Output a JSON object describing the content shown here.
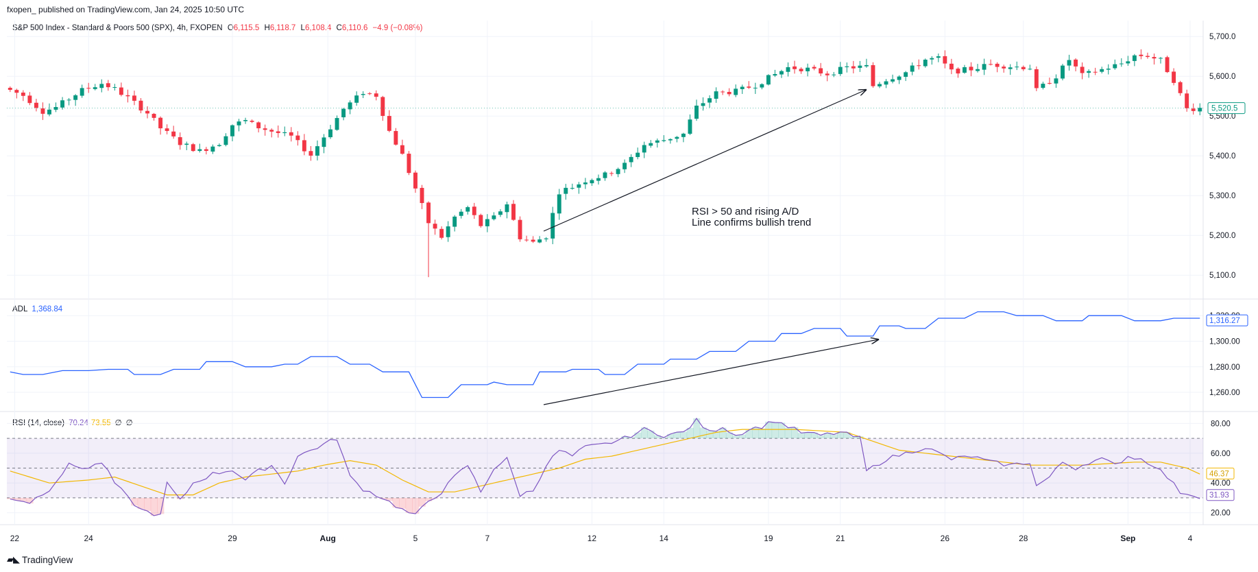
{
  "header": {
    "published": "fxopen_ published on TradingView.com, Jan 24, 2025 10:50 UTC",
    "symbol": "S&P 500 Index - Standard & Poors 500 (SPX), 4h, FXOPEN",
    "ohlc": {
      "o_label": "O",
      "o": "6,115.5",
      "h_label": "H",
      "h": "6,118.7",
      "l_label": "L",
      "l": "6,108.4",
      "c_label": "C",
      "c": "6,110.6",
      "change": "−4.9 (−0.08%)"
    }
  },
  "annotation": {
    "line1": "RSI > 50 and rising A/D",
    "line2": "Line confirms bullish trend"
  },
  "brand": {
    "name": "TradingView",
    "logo": "tradingview-logo-icon"
  },
  "colors": {
    "up": "#089981",
    "down": "#f23645",
    "adl": "#2962ff",
    "rsi": "#7e57c2",
    "rsi_ma": "#f2b700",
    "grid": "#f0f3fa",
    "axis_text": "#131722"
  },
  "chart_data": [
    {
      "type": "candlestick",
      "title": "S&P 500 Index - Standard & Poors 500 (SPX), 4h, FXOPEN",
      "ylim": [
        5040,
        5740
      ],
      "y_ticks": [
        "5,700.0",
        "5,600.0",
        "5,500.0",
        "5,400.0",
        "5,300.0",
        "5,200.0",
        "5,100.0"
      ],
      "y_tick_values": [
        5700,
        5600,
        5500,
        5400,
        5300,
        5200,
        5100
      ],
      "last_price_label": "5,520.5",
      "x_labels": [
        "22",
        "24",
        "29",
        "Aug",
        "5",
        "7",
        "12",
        "14",
        "19",
        "21",
        "26",
        "28",
        "Sep",
        "4"
      ],
      "close_anchors": [
        [
          0,
          5565
        ],
        [
          2,
          5552
        ],
        [
          5,
          5512
        ],
        [
          7,
          5522
        ],
        [
          11,
          5565
        ],
        [
          14,
          5582
        ],
        [
          16,
          5568
        ],
        [
          18,
          5546
        ],
        [
          21,
          5508
        ],
        [
          23,
          5470
        ],
        [
          26,
          5432
        ],
        [
          29,
          5412
        ],
        [
          32,
          5432
        ],
        [
          34,
          5478
        ],
        [
          36,
          5488
        ],
        [
          38,
          5472
        ],
        [
          40,
          5462
        ],
        [
          43,
          5448
        ],
        [
          46,
          5402
        ],
        [
          48,
          5448
        ],
        [
          51,
          5518
        ],
        [
          54,
          5560
        ],
        [
          56,
          5552
        ],
        [
          58,
          5462
        ],
        [
          60,
          5402
        ],
        [
          62,
          5318
        ],
        [
          64,
          5232
        ],
        [
          66,
          5196
        ],
        [
          68,
          5246
        ],
        [
          70,
          5270
        ],
        [
          72,
          5225
        ],
        [
          74,
          5245
        ],
        [
          76,
          5280
        ],
        [
          78,
          5195
        ],
        [
          80,
          5182
        ],
        [
          82,
          5198
        ],
        [
          84,
          5310
        ],
        [
          86,
          5322
        ],
        [
          88,
          5338
        ],
        [
          91,
          5352
        ],
        [
          94,
          5378
        ],
        [
          97,
          5428
        ],
        [
          100,
          5440
        ],
        [
          103,
          5455
        ],
        [
          105,
          5522
        ],
        [
          108,
          5558
        ],
        [
          111,
          5562
        ],
        [
          114,
          5578
        ],
        [
          116,
          5596
        ],
        [
          119,
          5622
        ],
        [
          122,
          5618
        ],
        [
          125,
          5606
        ],
        [
          128,
          5622
        ],
        [
          131,
          5624
        ],
        [
          132,
          5576
        ],
        [
          134,
          5592
        ],
        [
          137,
          5610
        ],
        [
          140,
          5642
        ],
        [
          142,
          5645
        ],
        [
          144,
          5612
        ],
        [
          147,
          5618
        ],
        [
          150,
          5630
        ],
        [
          153,
          5625
        ],
        [
          156,
          5622
        ],
        [
          157,
          5564
        ],
        [
          160,
          5600
        ],
        [
          162,
          5642
        ],
        [
          164,
          5602
        ],
        [
          167,
          5617
        ],
        [
          170,
          5632
        ],
        [
          172,
          5652
        ],
        [
          174,
          5652
        ],
        [
          176,
          5640
        ],
        [
          178,
          5590
        ],
        [
          180,
          5518
        ],
        [
          182,
          5520
        ]
      ],
      "candle_count": 183
    },
    {
      "type": "line",
      "title": "ADL",
      "value_label": "1,368.84",
      "ylim": [
        1245,
        1333
      ],
      "y_ticks": [
        "1,320.00",
        "1,300.00",
        "1,280.00",
        "1,260.00"
      ],
      "y_tick_values": [
        1320,
        1300,
        1280,
        1260
      ],
      "last_value_label": "1,316.27",
      "steps": [
        [
          0,
          1276
        ],
        [
          2,
          1274
        ],
        [
          5,
          1274
        ],
        [
          8,
          1277
        ],
        [
          12,
          1277
        ],
        [
          15,
          1278
        ],
        [
          18,
          1278
        ],
        [
          19,
          1274
        ],
        [
          23,
          1274
        ],
        [
          25,
          1278
        ],
        [
          29,
          1278
        ],
        [
          30,
          1284
        ],
        [
          34,
          1284
        ],
        [
          36,
          1280
        ],
        [
          40,
          1280
        ],
        [
          42,
          1282
        ],
        [
          44,
          1282
        ],
        [
          46,
          1288
        ],
        [
          50,
          1288
        ],
        [
          52,
          1282
        ],
        [
          55,
          1282
        ],
        [
          57,
          1276
        ],
        [
          61,
          1276
        ],
        [
          63,
          1256
        ],
        [
          67,
          1256
        ],
        [
          69,
          1266
        ],
        [
          73,
          1266
        ],
        [
          74,
          1268
        ],
        [
          76,
          1266
        ],
        [
          80,
          1266
        ],
        [
          81,
          1276
        ],
        [
          85,
          1276
        ],
        [
          86,
          1278
        ],
        [
          90,
          1278
        ],
        [
          91,
          1274
        ],
        [
          94,
          1274
        ],
        [
          96,
          1282
        ],
        [
          100,
          1282
        ],
        [
          101,
          1286
        ],
        [
          105,
          1286
        ],
        [
          107,
          1292
        ],
        [
          111,
          1292
        ],
        [
          113,
          1300
        ],
        [
          117,
          1300
        ],
        [
          118,
          1306
        ],
        [
          121,
          1306
        ],
        [
          123,
          1310
        ],
        [
          127,
          1310
        ],
        [
          128,
          1304
        ],
        [
          132,
          1304
        ],
        [
          133,
          1312
        ],
        [
          136,
          1312
        ],
        [
          137,
          1310
        ],
        [
          140,
          1310
        ],
        [
          142,
          1318
        ],
        [
          146,
          1318
        ],
        [
          148,
          1323
        ],
        [
          152,
          1323
        ],
        [
          154,
          1320
        ],
        [
          158,
          1320
        ],
        [
          160,
          1316
        ],
        [
          164,
          1316
        ],
        [
          165,
          1320
        ],
        [
          170,
          1320
        ],
        [
          172,
          1316
        ],
        [
          176,
          1316
        ],
        [
          178,
          1318
        ],
        [
          182,
          1318
        ]
      ]
    },
    {
      "type": "line",
      "title": "RSI (14, close)",
      "value_labels": [
        "70.24",
        "73.55",
        "∅",
        "∅"
      ],
      "ylim": [
        12,
        88
      ],
      "y_ticks": [
        "80.00",
        "60.00",
        "40.00",
        "20.00"
      ],
      "y_tick_values": [
        80,
        60,
        40,
        20
      ],
      "bands": {
        "upper": 70,
        "middle": 50,
        "lower": 30
      },
      "last_value_labels": [
        "46.37",
        "31.93"
      ],
      "rsi_anchors": [
        [
          0,
          30
        ],
        [
          3,
          27
        ],
        [
          6,
          36
        ],
        [
          9,
          52
        ],
        [
          12,
          50
        ],
        [
          14,
          54
        ],
        [
          16,
          40
        ],
        [
          18,
          30
        ],
        [
          20,
          22
        ],
        [
          23,
          18
        ],
        [
          24,
          40
        ],
        [
          26,
          28
        ],
        [
          28,
          40
        ],
        [
          31,
          46
        ],
        [
          34,
          49
        ],
        [
          36,
          42
        ],
        [
          38,
          48
        ],
        [
          40,
          52
        ],
        [
          42,
          40
        ],
        [
          44,
          58
        ],
        [
          47,
          64
        ],
        [
          50,
          70
        ],
        [
          52,
          44
        ],
        [
          54,
          36
        ],
        [
          57,
          30
        ],
        [
          60,
          22
        ],
        [
          62,
          18
        ],
        [
          64,
          28
        ],
        [
          66,
          34
        ],
        [
          68,
          44
        ],
        [
          70,
          52
        ],
        [
          72,
          34
        ],
        [
          74,
          50
        ],
        [
          76,
          56
        ],
        [
          78,
          32
        ],
        [
          80,
          35
        ],
        [
          82,
          52
        ],
        [
          84,
          62
        ],
        [
          86,
          58
        ],
        [
          88,
          64
        ],
        [
          91,
          66
        ],
        [
          94,
          70
        ],
        [
          97,
          76
        ],
        [
          100,
          72
        ],
        [
          103,
          74
        ],
        [
          105,
          82
        ],
        [
          107,
          74
        ],
        [
          109,
          78
        ],
        [
          111,
          72
        ],
        [
          113,
          76
        ],
        [
          115,
          78
        ],
        [
          117,
          82
        ],
        [
          119,
          78
        ],
        [
          121,
          74
        ],
        [
          124,
          72
        ],
        [
          127,
          74
        ],
        [
          130,
          70
        ],
        [
          131,
          48
        ],
        [
          134,
          56
        ],
        [
          137,
          60
        ],
        [
          140,
          64
        ],
        [
          142,
          60
        ],
        [
          144,
          56
        ],
        [
          147,
          58
        ],
        [
          150,
          54
        ],
        [
          153,
          52
        ],
        [
          156,
          54
        ],
        [
          157,
          38
        ],
        [
          159,
          44
        ],
        [
          161,
          54
        ],
        [
          163,
          50
        ],
        [
          165,
          54
        ],
        [
          167,
          56
        ],
        [
          169,
          52
        ],
        [
          171,
          58
        ],
        [
          173,
          56
        ],
        [
          175,
          52
        ],
        [
          177,
          44
        ],
        [
          179,
          34
        ],
        [
          182,
          31
        ]
      ],
      "ma_anchors": [
        [
          0,
          48
        ],
        [
          6,
          40
        ],
        [
          12,
          42
        ],
        [
          16,
          44
        ],
        [
          20,
          38
        ],
        [
          24,
          32
        ],
        [
          28,
          32
        ],
        [
          32,
          40
        ],
        [
          36,
          44
        ],
        [
          40,
          46
        ],
        [
          44,
          48
        ],
        [
          48,
          52
        ],
        [
          52,
          55
        ],
        [
          56,
          52
        ],
        [
          60,
          42
        ],
        [
          64,
          34
        ],
        [
          68,
          34
        ],
        [
          72,
          38
        ],
        [
          76,
          42
        ],
        [
          80,
          46
        ],
        [
          84,
          50
        ],
        [
          88,
          56
        ],
        [
          92,
          58
        ],
        [
          96,
          62
        ],
        [
          100,
          66
        ],
        [
          104,
          70
        ],
        [
          108,
          74
        ],
        [
          112,
          76
        ],
        [
          116,
          76
        ],
        [
          120,
          76
        ],
        [
          124,
          75
        ],
        [
          128,
          74
        ],
        [
          132,
          68
        ],
        [
          136,
          62
        ],
        [
          140,
          60
        ],
        [
          144,
          58
        ],
        [
          148,
          56
        ],
        [
          152,
          54
        ],
        [
          156,
          52
        ],
        [
          160,
          52
        ],
        [
          164,
          52
        ],
        [
          168,
          53
        ],
        [
          172,
          54
        ],
        [
          176,
          54
        ],
        [
          180,
          50
        ],
        [
          182,
          46
        ]
      ]
    }
  ]
}
